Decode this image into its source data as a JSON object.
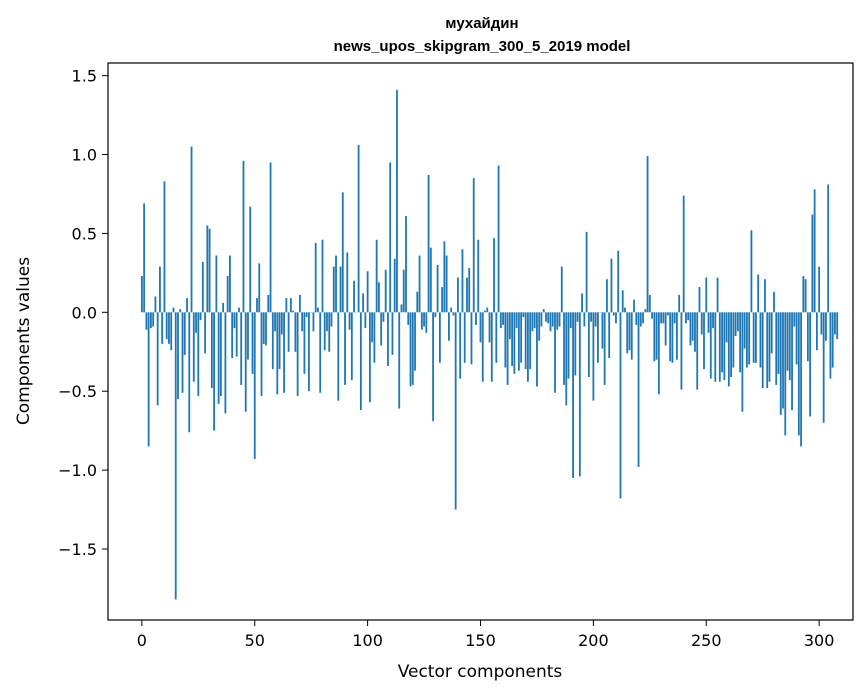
{
  "chart_data": {
    "type": "bar",
    "title_line1": "мухайдин",
    "title_line2": "news_upos_skipgram_300_5_2019 model",
    "xlabel": "Vector components",
    "ylabel": "Components values",
    "xlim": [
      -15,
      315
    ],
    "ylim": [
      -1.95,
      1.58
    ],
    "xticks": [
      0,
      50,
      100,
      150,
      200,
      250,
      300
    ],
    "xtick_labels": [
      "0",
      "50",
      "100",
      "150",
      "200",
      "250",
      "300"
    ],
    "yticks": [
      -1.5,
      -1.0,
      -0.5,
      0.0,
      0.5,
      1.0,
      1.5
    ],
    "ytick_labels": [
      "−1.5",
      "−1.0",
      "−0.5",
      "0.0",
      "0.5",
      "1.0",
      "1.5"
    ],
    "bar_color": "#1f77b4",
    "values": [
      0.23,
      0.69,
      -0.11,
      -0.85,
      -0.1,
      -0.09,
      0.1,
      -0.59,
      0.29,
      -0.2,
      0.83,
      -0.17,
      -0.2,
      -0.24,
      0.03,
      -1.82,
      -0.55,
      0.02,
      -0.51,
      -0.27,
      0.09,
      -0.76,
      1.05,
      -0.44,
      -0.13,
      -0.53,
      -0.05,
      0.32,
      -0.26,
      0.55,
      0.53,
      -0.48,
      -0.75,
      0.36,
      -0.58,
      -0.53,
      0.06,
      -0.64,
      0.23,
      0.36,
      -0.29,
      -0.1,
      -0.28,
      0.03,
      -0.46,
      0.96,
      -0.63,
      -0.3,
      0.67,
      -0.39,
      -0.93,
      0.09,
      0.31,
      -0.53,
      -0.2,
      -0.21,
      0.11,
      0.95,
      -0.36,
      -0.12,
      -0.52,
      -0.36,
      -0.14,
      -0.51,
      0.09,
      -0.25,
      0.09,
      0.01,
      -0.25,
      -0.53,
      0.11,
      -0.12,
      -0.39,
      -0.03,
      -0.5,
      0.0,
      -0.12,
      0.44,
      0.03,
      -0.51,
      0.46,
      -0.24,
      -0.12,
      -0.25,
      -0.09,
      0.29,
      0.36,
      -0.56,
      0.29,
      0.76,
      -0.46,
      0.38,
      -0.11,
      -0.43,
      0.2,
      0.0,
      1.06,
      -0.62,
      0.12,
      -0.1,
      0.26,
      -0.57,
      -0.19,
      -0.32,
      0.46,
      0.19,
      -0.21,
      -0.06,
      0.27,
      -0.34,
      0.95,
      -0.27,
      0.34,
      1.41,
      -0.61,
      0.05,
      0.27,
      0.61,
      -0.08,
      -0.47,
      -0.46,
      -0.37,
      0.13,
      0.36,
      -0.11,
      -0.09,
      -0.13,
      0.87,
      0.41,
      -0.69,
      -0.03,
      0.3,
      -0.32,
      0.16,
      0.45,
      0.36,
      -0.18,
      0.03,
      -0.02,
      -1.25,
      0.22,
      -0.42,
      0.4,
      -0.32,
      0.22,
      0.28,
      -0.33,
      0.85,
      -0.08,
      0.46,
      -0.19,
      -0.44,
      0.01,
      0.03,
      -0.19,
      -0.44,
      0.47,
      -0.32,
      0.93,
      -0.1,
      -0.08,
      -0.35,
      -0.46,
      -0.17,
      -0.34,
      -0.39,
      -0.1,
      -0.37,
      -0.32,
      -0.03,
      -0.36,
      -0.44,
      -0.36,
      -0.12,
      -0.1,
      -0.47,
      -0.18,
      -0.09,
      0.02,
      -0.06,
      -0.07,
      -0.12,
      -0.09,
      -0.51,
      -0.11,
      -0.09,
      0.29,
      -0.46,
      -0.59,
      -0.42,
      -0.1,
      -1.05,
      -0.4,
      -0.06,
      -1.04,
      0.12,
      -0.09,
      0.51,
      -0.41,
      -0.06,
      -0.56,
      -0.09,
      -0.32,
      0.0,
      -0.23,
      -0.46,
      0.21,
      -0.29,
      0.34,
      -0.02,
      -0.07,
      0.39,
      -1.18,
      0.14,
      0.03,
      -0.26,
      -0.24,
      -0.3,
      0.08,
      -0.08,
      -0.98,
      -0.09,
      -0.07,
      0.02,
      0.99,
      0.11,
      -0.04,
      -0.31,
      -0.3,
      -0.52,
      -0.07,
      -0.07,
      -0.21,
      -0.02,
      -0.31,
      -0.32,
      -0.07,
      -0.3,
      0.11,
      -0.49,
      0.74,
      -0.07,
      -0.05,
      -0.21,
      -0.18,
      -0.25,
      -0.49,
      0.16,
      -0.14,
      -0.36,
      0.22,
      -0.13,
      -0.42,
      -0.1,
      -0.44,
      0.22,
      -0.44,
      -0.38,
      -0.43,
      -0.19,
      -0.47,
      -0.41,
      -0.35,
      -0.15,
      -0.12,
      -0.38,
      -0.63,
      -0.23,
      -0.35,
      -0.33,
      0.52,
      -0.32,
      -0.32,
      0.24,
      -0.35,
      -0.48,
      0.21,
      -0.48,
      -0.44,
      -0.26,
      0.13,
      -0.46,
      -0.39,
      -0.65,
      -0.61,
      -0.78,
      -0.37,
      -0.43,
      -0.62,
      -0.09,
      -0.33,
      -0.78,
      -0.85,
      0.23,
      0.21,
      -0.31,
      -0.66,
      0.62,
      0.78,
      -0.24,
      0.29,
      -0.14,
      -0.7,
      -0.18,
      0.81,
      -0.42,
      -0.35,
      -0.14,
      -0.17
    ]
  }
}
